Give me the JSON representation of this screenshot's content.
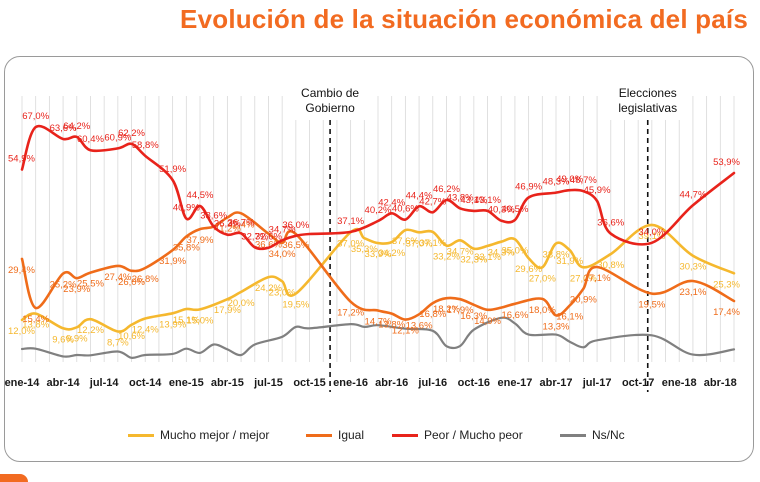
{
  "title": "Evolución de la situación económica del país",
  "colors": {
    "mejor": "#f5b82e",
    "igual": "#ef6c1a",
    "peor": "#e8231b",
    "nsnc": "#808080",
    "title": "#f26b21"
  },
  "chart_data": {
    "type": "line",
    "title": "Evolución de la situación económica del país",
    "x_tick_labels": [
      "ene-14",
      "abr-14",
      "jul-14",
      "oct-14",
      "ene-15",
      "abr-15",
      "jul-15",
      "oct-15",
      "ene-16",
      "abr-16",
      "jul-16",
      "oct-16",
      "ene-17",
      "abr-17",
      "jul-17",
      "oct-17",
      "ene-18",
      "abr-18"
    ],
    "x_range_months": [
      0,
      52
    ],
    "ylim": [
      0,
      75
    ],
    "annotations": [
      {
        "label_lines": [
          "Cambio de",
          "Gobierno"
        ],
        "x_month": 22.5
      },
      {
        "label_lines": [
          "Elecciones",
          "legislativas"
        ],
        "x_month": 45.7
      }
    ],
    "series": [
      {
        "name": "Peor / Mucho peor",
        "key": "peor",
        "points": [
          {
            "m": 0,
            "v": 54.9,
            "l": "54,9%"
          },
          {
            "m": 1,
            "v": 67.0,
            "l": "67,0%"
          },
          {
            "m": 3,
            "v": 63.6,
            "l": "63,6%"
          },
          {
            "m": 4,
            "v": 64.2,
            "l": "64,2%"
          },
          {
            "m": 5,
            "v": 60.4,
            "l": "60,4%"
          },
          {
            "m": 7,
            "v": 60.9,
            "l": "60,9%"
          },
          {
            "m": 8,
            "v": 62.2,
            "l": "62,2%"
          },
          {
            "m": 9,
            "v": 58.8,
            "l": "58,8%"
          },
          {
            "m": 11,
            "v": 51.9,
            "l": "51,9%"
          },
          {
            "m": 12,
            "v": 40.9,
            "l": "40,9%"
          },
          {
            "m": 13,
            "v": 44.5,
            "l": "44,5%"
          },
          {
            "m": 14,
            "v": 38.6,
            "l": "38,6%"
          },
          {
            "m": 15,
            "v": 36.3,
            "l": "36,3%"
          },
          {
            "m": 16,
            "v": 36.7,
            "l": "36,7%"
          },
          {
            "m": 17,
            "v": 32.7,
            "l": "32,7%"
          },
          {
            "m": 18,
            "v": 32.6,
            "l": "32,6%"
          },
          {
            "m": 19,
            "v": 34.7,
            "l": "34,7%"
          },
          {
            "m": 20,
            "v": 36.0,
            "l": "36,0%"
          },
          {
            "m": 21,
            "v": 36.5,
            "l": ""
          },
          {
            "m": 24,
            "v": 37.1,
            "l": "37,1%"
          },
          {
            "m": 26,
            "v": 40.2,
            "l": "40,2%"
          },
          {
            "m": 27,
            "v": 42.4,
            "l": "42,4%"
          },
          {
            "m": 28,
            "v": 40.6,
            "l": "40,6%"
          },
          {
            "m": 29,
            "v": 44.4,
            "l": "44,4%"
          },
          {
            "m": 30,
            "v": 42.7,
            "l": "42,7%"
          },
          {
            "m": 31,
            "v": 46.2,
            "l": "46,2%"
          },
          {
            "m": 32,
            "v": 43.8,
            "l": "43,8%"
          },
          {
            "m": 33,
            "v": 43.1,
            "l": "43,1%"
          },
          {
            "m": 34,
            "v": 43.1,
            "l": "43,1%"
          },
          {
            "m": 35,
            "v": 40.3,
            "l": "40,3%"
          },
          {
            "m": 36,
            "v": 40.5,
            "l": "40,5%"
          },
          {
            "m": 37,
            "v": 46.9,
            "l": "46,9%"
          },
          {
            "m": 39,
            "v": 48.3,
            "l": "48,3%"
          },
          {
            "m": 40,
            "v": 49.0,
            "l": "49,0%"
          },
          {
            "m": 41,
            "v": 48.7,
            "l": "48,7%"
          },
          {
            "m": 42,
            "v": 45.9,
            "l": "45,9%"
          },
          {
            "m": 43,
            "v": 36.6,
            "l": "36,6%"
          },
          {
            "m": 46,
            "v": 34.0,
            "l": "34,0%"
          },
          {
            "m": 49,
            "v": 44.7,
            "l": "44,7%"
          },
          {
            "m": 52,
            "v": 53.9,
            "l": "53,9%"
          }
        ]
      },
      {
        "name": "Igual",
        "key": "igual",
        "points": [
          {
            "m": 0,
            "v": 29.4,
            "l": "29,4%"
          },
          {
            "m": 1,
            "v": 15.4,
            "l": "15,4%"
          },
          {
            "m": 3,
            "v": 25.2,
            "l": "25,2%"
          },
          {
            "m": 4,
            "v": 23.9,
            "l": "23,9%"
          },
          {
            "m": 5,
            "v": 25.5,
            "l": "25,5%"
          },
          {
            "m": 7,
            "v": 27.4,
            "l": "27,4%"
          },
          {
            "m": 8,
            "v": 26.0,
            "l": "26,0%"
          },
          {
            "m": 9,
            "v": 26.8,
            "l": "26,8%"
          },
          {
            "m": 11,
            "v": 31.9,
            "l": "31,9%"
          },
          {
            "m": 12,
            "v": 35.8,
            "l": "35,8%"
          },
          {
            "m": 13,
            "v": 37.9,
            "l": "37,9%"
          },
          {
            "m": 14,
            "v": 38.6,
            "l": ""
          },
          {
            "m": 15,
            "v": 41.2,
            "l": "41,2%"
          },
          {
            "m": 16,
            "v": 42.4,
            "l": "42,4%"
          },
          {
            "m": 18,
            "v": 36.6,
            "l": "36,6%"
          },
          {
            "m": 19,
            "v": 34.0,
            "l": "34,0%"
          },
          {
            "m": 20,
            "v": 36.5,
            "l": "36,5%"
          },
          {
            "m": 24,
            "v": 17.2,
            "l": "17,2%"
          },
          {
            "m": 26,
            "v": 14.7,
            "l": "14,7%"
          },
          {
            "m": 27,
            "v": 13.8,
            "l": "13,8%"
          },
          {
            "m": 28,
            "v": 12.1,
            "l": "12,1%"
          },
          {
            "m": 29,
            "v": 13.6,
            "l": "13,6%"
          },
          {
            "m": 30,
            "v": 16.8,
            "l": "16,8%"
          },
          {
            "m": 31,
            "v": 18.2,
            "l": "18,2%"
          },
          {
            "m": 32,
            "v": 17.9,
            "l": "17,9%"
          },
          {
            "m": 33,
            "v": 16.3,
            "l": "16,3%"
          },
          {
            "m": 34,
            "v": 14.9,
            "l": "14,9%"
          },
          {
            "m": 35,
            "v": 15.5,
            "l": ""
          },
          {
            "m": 36,
            "v": 16.6,
            "l": "16,6%"
          },
          {
            "m": 38,
            "v": 18.0,
            "l": "18,0%"
          },
          {
            "m": 39,
            "v": 13.3,
            "l": "13,3%"
          },
          {
            "m": 40,
            "v": 16.1,
            "l": "16,1%"
          },
          {
            "m": 41,
            "v": 20.9,
            "l": "20,9%"
          },
          {
            "m": 42,
            "v": 27.1,
            "l": "27,1%"
          },
          {
            "m": 46,
            "v": 19.5,
            "l": "19,5%"
          },
          {
            "m": 49,
            "v": 23.1,
            "l": "23,1%"
          },
          {
            "m": 52,
            "v": 17.4,
            "l": "17,4%"
          }
        ]
      },
      {
        "name": "Mucho mejor / mejor",
        "key": "mejor",
        "points": [
          {
            "m": 0,
            "v": 12.0,
            "l": "12,0%"
          },
          {
            "m": 1,
            "v": 13.8,
            "l": "13,8%"
          },
          {
            "m": 3,
            "v": 9.6,
            "l": "9,6%"
          },
          {
            "m": 4,
            "v": 9.9,
            "l": "9,9%"
          },
          {
            "m": 5,
            "v": 12.2,
            "l": "12,2%"
          },
          {
            "m": 7,
            "v": 8.7,
            "l": "8,7%"
          },
          {
            "m": 8,
            "v": 10.6,
            "l": "10,6%"
          },
          {
            "m": 9,
            "v": 12.4,
            "l": "12,4%"
          },
          {
            "m": 11,
            "v": 13.9,
            "l": "13,9%"
          },
          {
            "m": 12,
            "v": 15.1,
            "l": "15,1%"
          },
          {
            "m": 13,
            "v": 15.0,
            "l": "15,0%"
          },
          {
            "m": 15,
            "v": 17.9,
            "l": "17,9%"
          },
          {
            "m": 16,
            "v": 20.0,
            "l": "20,0%"
          },
          {
            "m": 18,
            "v": 24.2,
            "l": "24,2%"
          },
          {
            "m": 19,
            "v": 23.0,
            "l": "23,0%"
          },
          {
            "m": 20,
            "v": 19.5,
            "l": "19,5%"
          },
          {
            "m": 24,
            "v": 37.0,
            "l": "37,0%"
          },
          {
            "m": 25,
            "v": 35.3,
            "l": "35,3%"
          },
          {
            "m": 26,
            "v": 33.9,
            "l": "33,9%"
          },
          {
            "m": 27,
            "v": 34.2,
            "l": "34,2%"
          },
          {
            "m": 28,
            "v": 37.6,
            "l": "37,6%"
          },
          {
            "m": 29,
            "v": 37.0,
            "l": "37,0%"
          },
          {
            "m": 30,
            "v": 37.1,
            "l": "37,1%"
          },
          {
            "m": 31,
            "v": 33.2,
            "l": "33,2%"
          },
          {
            "m": 32,
            "v": 34.7,
            "l": "34,7%"
          },
          {
            "m": 33,
            "v": 32.3,
            "l": "32,3%"
          },
          {
            "m": 34,
            "v": 33.1,
            "l": "33,1%"
          },
          {
            "m": 35,
            "v": 34.3,
            "l": "34,3%"
          },
          {
            "m": 36,
            "v": 35.0,
            "l": "35,0%"
          },
          {
            "m": 37,
            "v": 29.6,
            "l": "29,6%"
          },
          {
            "m": 38,
            "v": 27.0,
            "l": "27,0%"
          },
          {
            "m": 39,
            "v": 33.8,
            "l": "33,8%"
          },
          {
            "m": 40,
            "v": 31.9,
            "l": "31,9%"
          },
          {
            "m": 41,
            "v": 27.0,
            "l": "27,0%"
          },
          {
            "m": 43,
            "v": 30.8,
            "l": "30,8%"
          },
          {
            "m": 46,
            "v": 39.1,
            "l": "39,1%"
          },
          {
            "m": 49,
            "v": 30.3,
            "l": "30,3%"
          },
          {
            "m": 52,
            "v": 25.3,
            "l": "25,3%"
          }
        ]
      },
      {
        "name": "Ns/Nc",
        "key": "nsnc",
        "points": [
          {
            "m": 0,
            "v": 3.7,
            "l": ""
          },
          {
            "m": 1,
            "v": 3.8,
            "l": ""
          },
          {
            "m": 3,
            "v": 1.6,
            "l": ""
          },
          {
            "m": 4,
            "v": 2.0,
            "l": ""
          },
          {
            "m": 5,
            "v": 1.9,
            "l": ""
          },
          {
            "m": 7,
            "v": 3.0,
            "l": ""
          },
          {
            "m": 8,
            "v": 1.2,
            "l": ""
          },
          {
            "m": 9,
            "v": 2.0,
            "l": ""
          },
          {
            "m": 11,
            "v": 2.3,
            "l": ""
          },
          {
            "m": 12,
            "v": 3.8,
            "l": ""
          },
          {
            "m": 13,
            "v": 2.6,
            "l": ""
          },
          {
            "m": 14,
            "v": 5.0,
            "l": ""
          },
          {
            "m": 15,
            "v": 3.6,
            "l": ""
          },
          {
            "m": 16,
            "v": 2.0,
            "l": ""
          },
          {
            "m": 17,
            "v": 5.0,
            "l": ""
          },
          {
            "m": 19,
            "v": 7.2,
            "l": ""
          },
          {
            "m": 20,
            "v": 10.0,
            "l": ""
          },
          {
            "m": 21,
            "v": 9.6,
            "l": ""
          },
          {
            "m": 24,
            "v": 10.8,
            "l": ""
          },
          {
            "m": 25,
            "v": 10.0,
            "l": ""
          },
          {
            "m": 26,
            "v": 10.5,
            "l": ""
          },
          {
            "m": 28,
            "v": 9.5,
            "l": ""
          },
          {
            "m": 30,
            "v": 8.9,
            "l": ""
          },
          {
            "m": 31,
            "v": 4.5,
            "l": ""
          },
          {
            "m": 32,
            "v": 4.6,
            "l": ""
          },
          {
            "m": 33,
            "v": 9.2,
            "l": ""
          },
          {
            "m": 35,
            "v": 12.6,
            "l": ""
          },
          {
            "m": 36,
            "v": 11.0,
            "l": ""
          },
          {
            "m": 37,
            "v": 7.8,
            "l": ""
          },
          {
            "m": 39,
            "v": 7.8,
            "l": ""
          },
          {
            "m": 40,
            "v": 5.8,
            "l": ""
          },
          {
            "m": 41,
            "v": 4.2,
            "l": ""
          },
          {
            "m": 42,
            "v": 6.2,
            "l": ""
          },
          {
            "m": 46,
            "v": 7.6,
            "l": ""
          },
          {
            "m": 49,
            "v": 2.1,
            "l": ""
          },
          {
            "m": 52,
            "v": 3.6,
            "l": ""
          }
        ]
      }
    ]
  },
  "legend": [
    {
      "label": "Mucho mejor / mejor",
      "key": "mejor"
    },
    {
      "label": "Igual",
      "key": "igual"
    },
    {
      "label": "Peor / Mucho peor",
      "key": "peor"
    },
    {
      "label": "Ns/Nc",
      "key": "nsnc"
    }
  ]
}
